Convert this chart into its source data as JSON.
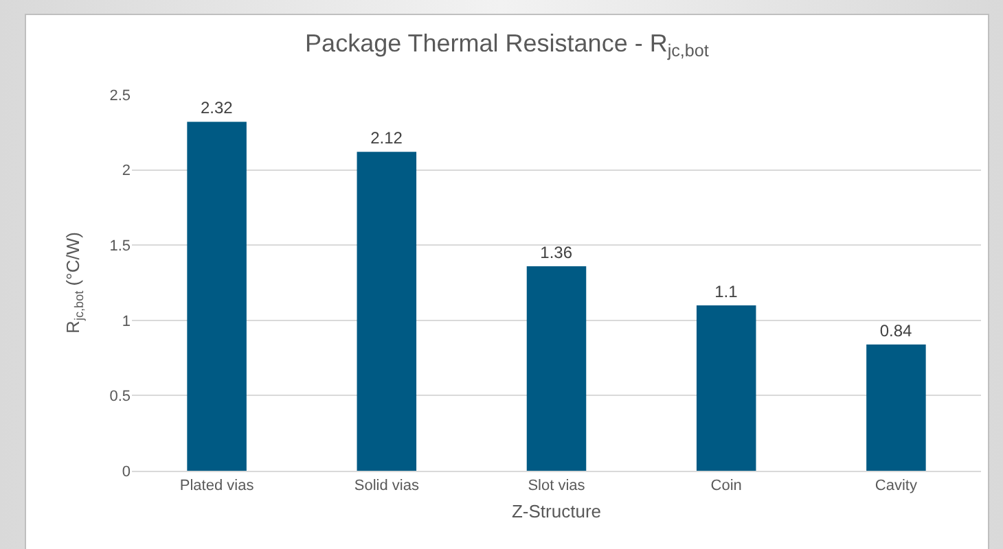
{
  "chart_data": {
    "type": "bar",
    "title": "Package Thermal Resistance - R$_{jc,bot}$",
    "xlabel": "Z-Structure",
    "ylabel": "R$_{jc,bot}$ (°C/W)",
    "categories": [
      "Plated vias",
      "Solid vias",
      "Slot vias",
      "Coin",
      "Cavity"
    ],
    "values": [
      2.32,
      2.12,
      1.36,
      1.1,
      0.84
    ],
    "color": "#005a84",
    "ylim": [
      0,
      2.5
    ],
    "yticks": [
      0,
      0.5,
      1,
      1.5,
      2,
      2.5
    ],
    "grid": "y",
    "data_labels": true
  }
}
